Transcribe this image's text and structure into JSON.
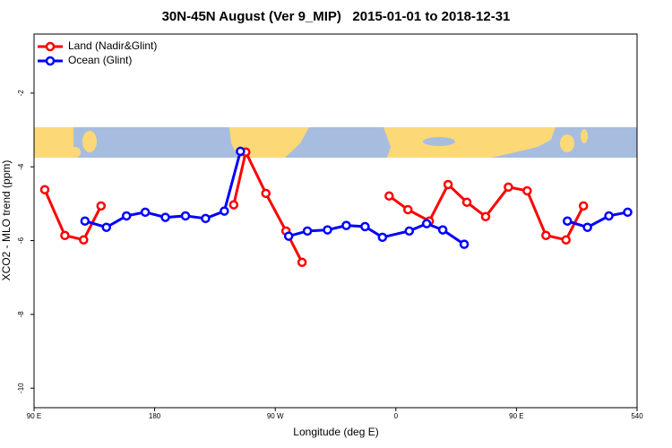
{
  "chart_data": {
    "type": "line",
    "title": "30N-45N August (Ver 9_MIP)   2015-01-01 to 2018-12-31",
    "xlabel": "Longitude (deg E)",
    "ylabel": "XCO2 - MLO trend (ppm)",
    "xlim": [
      90,
      540
    ],
    "ylim": [
      -10.53,
      -0.4
    ],
    "xticks": [
      {
        "value": 90,
        "label": "90 E"
      },
      180,
      {
        "value": 270,
        "label": "90 W"
      },
      {
        "value": 360,
        "label": "0"
      },
      {
        "value": 450,
        "label": "90 E"
      },
      540
    ],
    "yticks": [
      -10,
      -8,
      -6,
      -4,
      -2
    ],
    "legend": "top-left",
    "series": [
      {
        "name": "Land (Nadir&Glint)",
        "color": "#ff0000",
        "x": [
          98,
          113,
          127,
          140,
          null,
          239,
          248,
          263,
          278,
          290,
          null,
          355,
          369,
          385,
          399,
          413,
          427,
          444,
          458,
          472,
          487,
          500
        ],
        "values": [
          -4.62,
          -5.86,
          -5.98,
          -5.06,
          null,
          -5.03,
          -3.6,
          -4.72,
          -5.74,
          -6.59,
          null,
          -4.79,
          -5.16,
          -5.47,
          -4.48,
          -4.96,
          -5.35,
          -4.55,
          -4.65,
          -5.86,
          -5.98,
          -5.06
        ]
      },
      {
        "name": "Ocean (Glint)",
        "color": "#0000ff",
        "x": [
          128,
          144,
          159,
          173,
          188,
          203,
          218,
          232,
          244,
          null,
          280,
          294,
          309,
          323,
          337,
          350,
          370,
          383,
          395,
          411,
          null,
          488,
          503,
          519,
          533
        ],
        "values": [
          -5.47,
          -5.64,
          -5.33,
          -5.23,
          -5.37,
          -5.33,
          -5.4,
          -5.2,
          -3.58,
          null,
          -5.88,
          -5.74,
          -5.71,
          -5.59,
          -5.62,
          -5.91,
          -5.74,
          -5.54,
          -5.71,
          -6.1,
          null,
          -5.47,
          -5.64,
          -5.33,
          -5.23
        ]
      }
    ]
  }
}
